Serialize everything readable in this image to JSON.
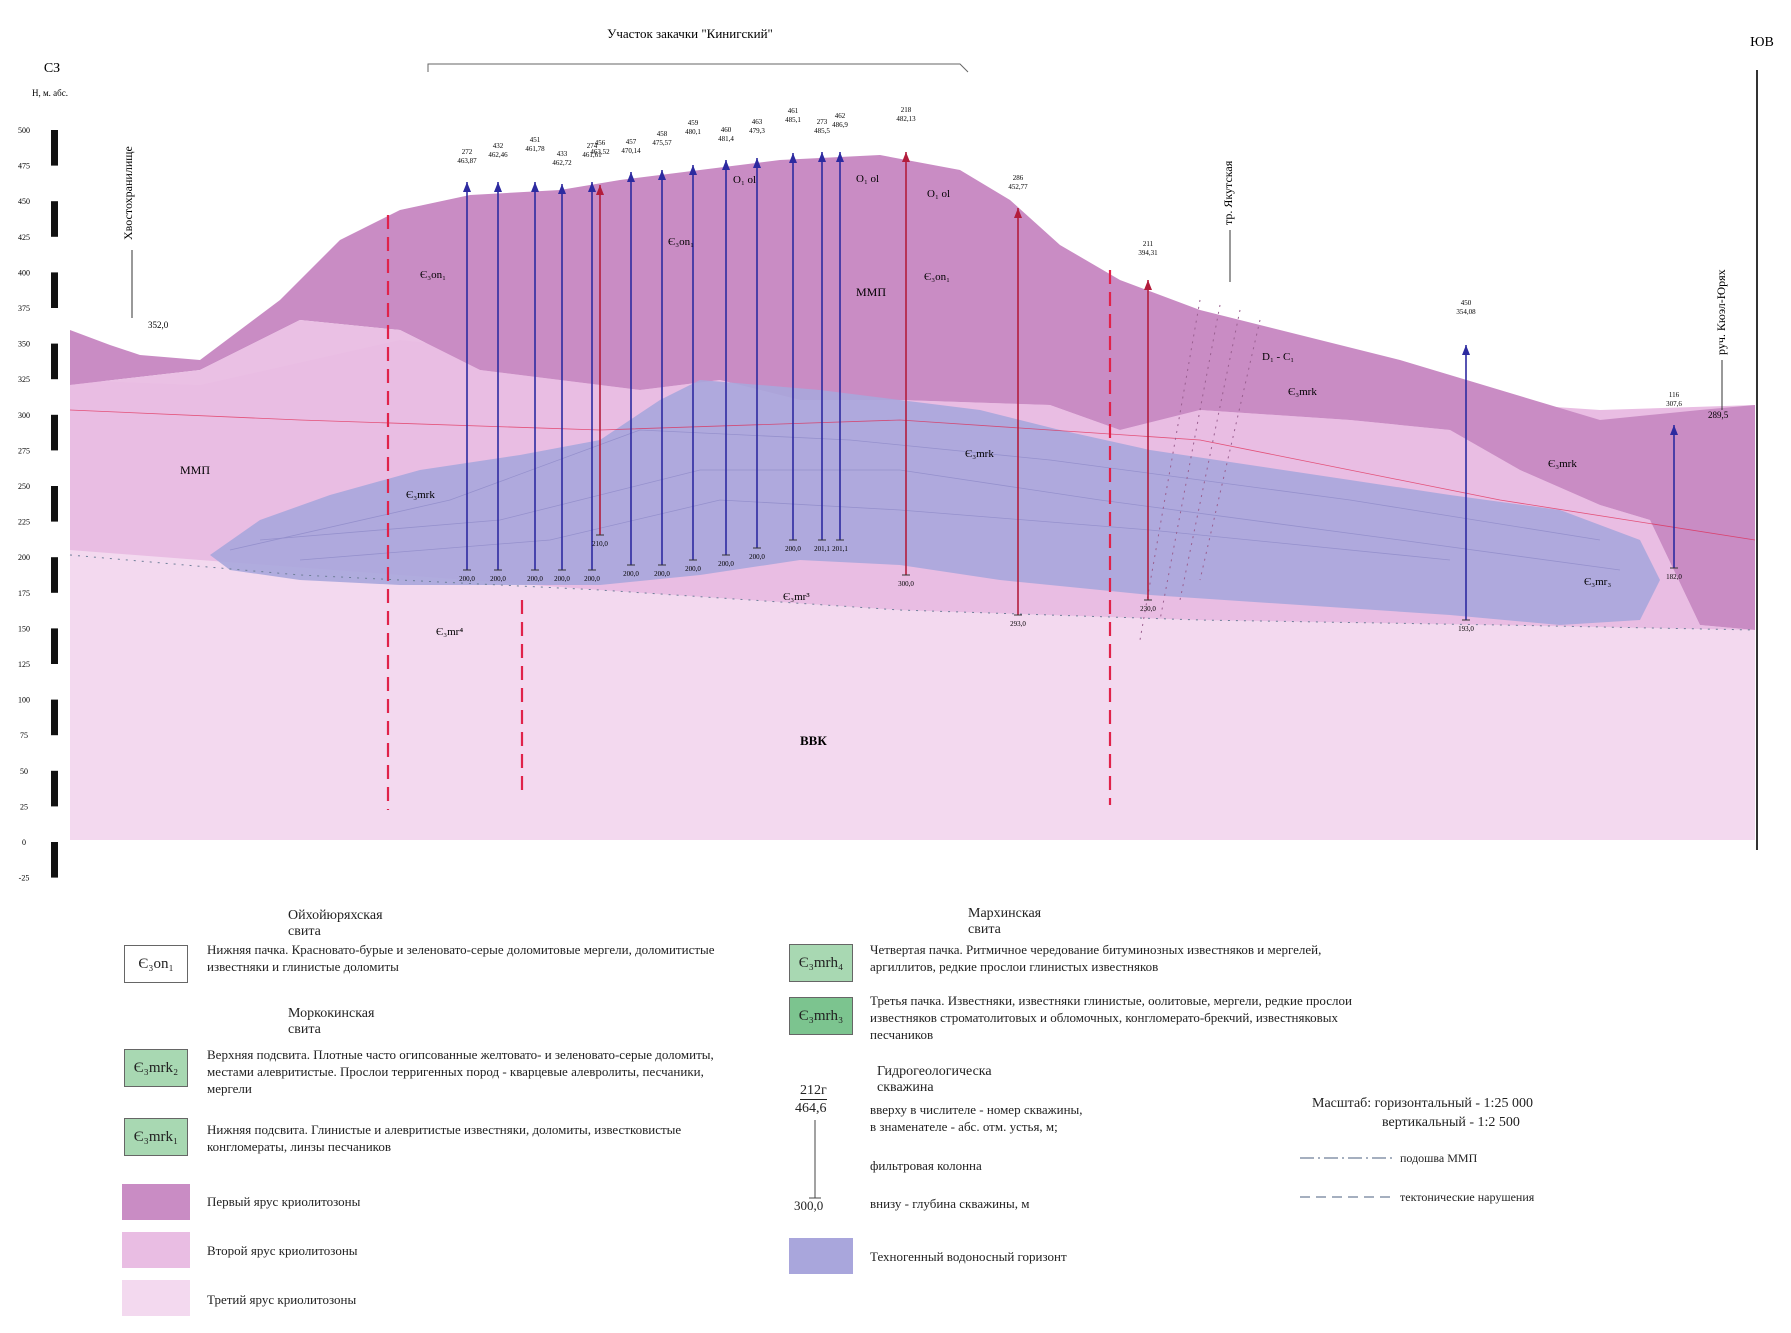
{
  "header": {
    "site_label": "Участок закачки \"Кинигский\"",
    "nw": "СЗ",
    "se": "ЮВ",
    "axis_unit": "Н, м. абс."
  },
  "axis_ticks": [
    "500",
    "475",
    "450",
    "425",
    "400",
    "375",
    "350",
    "325",
    "300",
    "275",
    "250",
    "225",
    "200",
    "175",
    "150",
    "125",
    "100",
    "75",
    "50",
    "25",
    "0",
    "-25"
  ],
  "section_labels": {
    "tailings": "Хвостохранилище",
    "tailings_level": "352,0",
    "stream1": "тр. Якутская",
    "stream2": "руч. Кюэл-Юрях",
    "stream2_level": "289,5",
    "mmp_left": "ММП",
    "mmp_top": "ММП",
    "vvk": "ВВК",
    "on1_left": "Є₃on₁",
    "on1_mid": "Є₃on₁",
    "on1_right": "Є₃on₁",
    "o_ol_1": "O₁ ol",
    "o_ol_2": "O₁ ol",
    "o_ol_3": "O₁ ol",
    "d_c": "D₁ - C₁",
    "mrk_left": "Є₃mrk",
    "mrk_mid": "Є₃mrk",
    "mrk_right1": "Є₃mrk",
    "mrk_right2": "Є₃mrk",
    "mr_low1": "Є₃mr⁴",
    "mr_low2": "Є₃mr³",
    "mr_low3": "Є₃mr₃"
  },
  "wells": [
    {
      "num": "272",
      "top": "463,87",
      "depth": "200,0"
    },
    {
      "num": "432",
      "top": "462,46",
      "depth": "200,0"
    },
    {
      "num": "451",
      "top": "461,78",
      "depth": "200,0"
    },
    {
      "num": "433",
      "top": "462,72",
      "depth": "200,0"
    },
    {
      "num": "274",
      "top": "461,61",
      "depth": "200,0"
    },
    {
      "num": "456",
      "top": "463,52",
      "depth": "210,0"
    },
    {
      "num": "457",
      "top": "470,14",
      "depth": "200,0"
    },
    {
      "num": "458",
      "top": "475,57",
      "depth": "200,0"
    },
    {
      "num": "459",
      "top": "480,1",
      "depth": "200,0"
    },
    {
      "num": "460",
      "top": "481,4",
      "depth": "200,0"
    },
    {
      "num": "463",
      "top": "479,3",
      "depth": "200,0"
    },
    {
      "num": "461",
      "top": "485,1",
      "depth": "200,0"
    },
    {
      "num": "273",
      "top": "485,5",
      "depth": "201,1"
    },
    {
      "num": "462",
      "top": "486,9",
      "depth": "201,1"
    },
    {
      "num": "218",
      "top": "482,13",
      "depth": "300,0"
    },
    {
      "num": "286",
      "top": "452,77",
      "depth": "293,0"
    },
    {
      "num": "211",
      "top": "394,31",
      "depth": "230,0"
    },
    {
      "num": "450",
      "top": "354,08",
      "depth": "193,0"
    },
    {
      "num": "116",
      "top": "307,6",
      "depth": "182,0"
    }
  ],
  "legend": {
    "oikhoy_title": "Ойхойюряхская свита",
    "on1_sym": "Є₃on₁",
    "on1_text": "Нижняя пачка. Красновато-бурые и зеленовато-серые доломитовые мергели, доломитистые известняки и глинистые доломиты",
    "morkok_title": "Моркокинская свита",
    "mrk2_sym": "Є₃mrk₂",
    "mrk2_text": "Верхняя подсвита. Плотные часто огипсованные желтовато- и зеленовато-серые доломиты, местами алевритистые. Прослои терригенных пород - кварцевые алевролиты, песчаники, мергели",
    "mrk1_sym": "Є₃mrk₁",
    "mrk1_text": "Нижняя подсвита. Глинистые и алевритистые известняки, доломиты, известковистые конгломераты, линзы песчаников",
    "tier1": "Первый ярус криолитозоны",
    "tier2": "Второй ярус криолитозоны",
    "tier3": "Третий ярус криолитозоны",
    "markha_title": "Мархинская свита",
    "mrh4_sym": "Є₃mrh₄",
    "mrh4_text": "Четвертая пачка. Ритмичное чередование битуминозных известняков и мергелей, аргиллитов, редкие прослои глинистых известняков",
    "mrh3_sym": "Є₃mrh₃",
    "mrh3_text": "Третья пачка. Известняки, известняки глинистые, оолитовые, мергели, редкие прослои известняков строматолитовых и обломочных, конгломерато-брекчий, известняковых песчаников",
    "well_title": "Гидрогеологическа скважина",
    "well_num": "212г",
    "well_top": "464,6",
    "well_desc1": "вверху в числителе - номер скважины,",
    "well_desc2": "в знаменателе - абс. отм. устья, м;",
    "well_filter": "фильтровая колонна",
    "well_depth": "300,0",
    "well_bottom": "внизу - глубина скважины, м",
    "techno": "Техногенный водоносный горизонт",
    "scale1": "Масштаб: горизонтальный - 1:25 000",
    "scale2": "вертикальный - 1:2 500",
    "mmp_base": "подошва ММП",
    "faults": "тектонические нарушения"
  },
  "colors": {
    "tier1": "#c98cc4",
    "tier2": "#e9bde3",
    "tier3": "#f3d9ef",
    "techno": "#a9a6dc",
    "fault": "#e0224a",
    "well": "#2d2aa0"
  }
}
